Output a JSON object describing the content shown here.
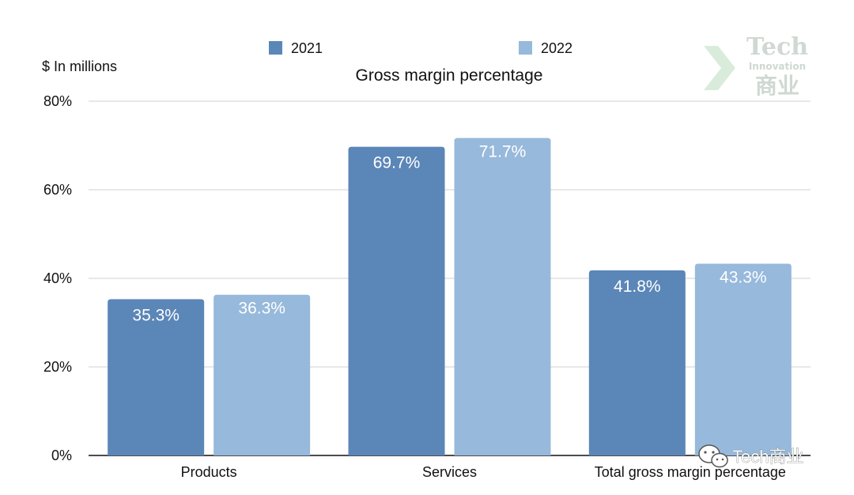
{
  "unit_label": "$ In millions",
  "watermark": {
    "logo_lines": [
      "Tech",
      "Innovation",
      "商业"
    ],
    "account": "Tech商业"
  },
  "colors": {
    "series_2021": "#5b86b8",
    "series_2022": "#97b9db"
  },
  "chart_data": {
    "type": "bar",
    "title": "Gross margin percentage",
    "xlabel": "",
    "ylabel": "",
    "categories": [
      "Products",
      "Services",
      "Total gross margin percentage"
    ],
    "series": [
      {
        "name": "2021",
        "values": [
          35.3,
          69.7,
          41.8
        ],
        "labels": [
          "35.3%",
          "69.7%",
          "41.8%"
        ]
      },
      {
        "name": "2022",
        "values": [
          36.3,
          71.7,
          43.3
        ],
        "labels": [
          "36.3%",
          "71.7%",
          "43.3%"
        ]
      }
    ],
    "ylim": [
      0,
      80
    ],
    "yticks": [
      {
        "value": 0,
        "label": "0%"
      },
      {
        "value": 20,
        "label": "20%"
      },
      {
        "value": 40,
        "label": "40%"
      },
      {
        "value": 60,
        "label": "60%"
      },
      {
        "value": 80,
        "label": "80%"
      }
    ],
    "grid": true,
    "legend_position": "top"
  }
}
